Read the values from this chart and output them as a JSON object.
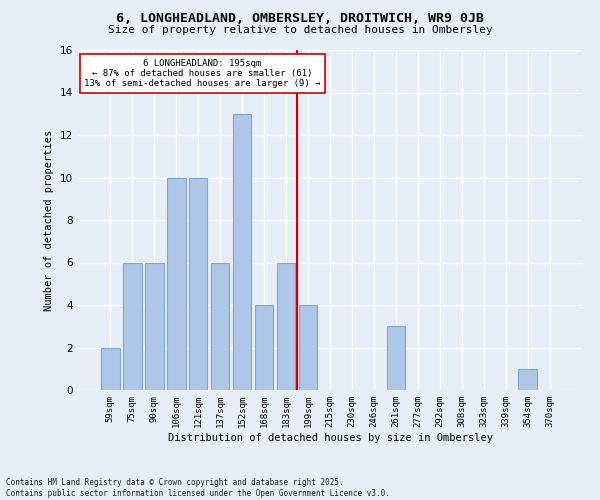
{
  "title1": "6, LONGHEADLAND, OMBERSLEY, DROITWICH, WR9 0JB",
  "title2": "Size of property relative to detached houses in Ombersley",
  "xlabel": "Distribution of detached houses by size in Ombersley",
  "ylabel": "Number of detached properties",
  "categories": [
    "59sqm",
    "75sqm",
    "90sqm",
    "106sqm",
    "121sqm",
    "137sqm",
    "152sqm",
    "168sqm",
    "183sqm",
    "199sqm",
    "215sqm",
    "230sqm",
    "246sqm",
    "261sqm",
    "277sqm",
    "292sqm",
    "308sqm",
    "323sqm",
    "339sqm",
    "354sqm",
    "370sqm"
  ],
  "values": [
    2,
    6,
    6,
    10,
    10,
    6,
    13,
    4,
    6,
    4,
    0,
    0,
    0,
    3,
    0,
    0,
    0,
    0,
    0,
    1,
    0
  ],
  "bar_color": "#aec6e8",
  "bar_edge_color": "#7aaad0",
  "vline_color": "#cc0000",
  "annotation_text": "6 LONGHEADLAND: 195sqm\n← 87% of detached houses are smaller (61)\n13% of semi-detached houses are larger (9) →",
  "annotation_box_color": "#ffffff",
  "annotation_box_edge": "#cc0000",
  "ylim": [
    0,
    16
  ],
  "yticks": [
    0,
    2,
    4,
    6,
    8,
    10,
    12,
    14,
    16
  ],
  "background_color": "#e8eef8",
  "grid_color": "#ffffff",
  "footer": "Contains HM Land Registry data © Crown copyright and database right 2025.\nContains public sector information licensed under the Open Government Licence v3.0."
}
